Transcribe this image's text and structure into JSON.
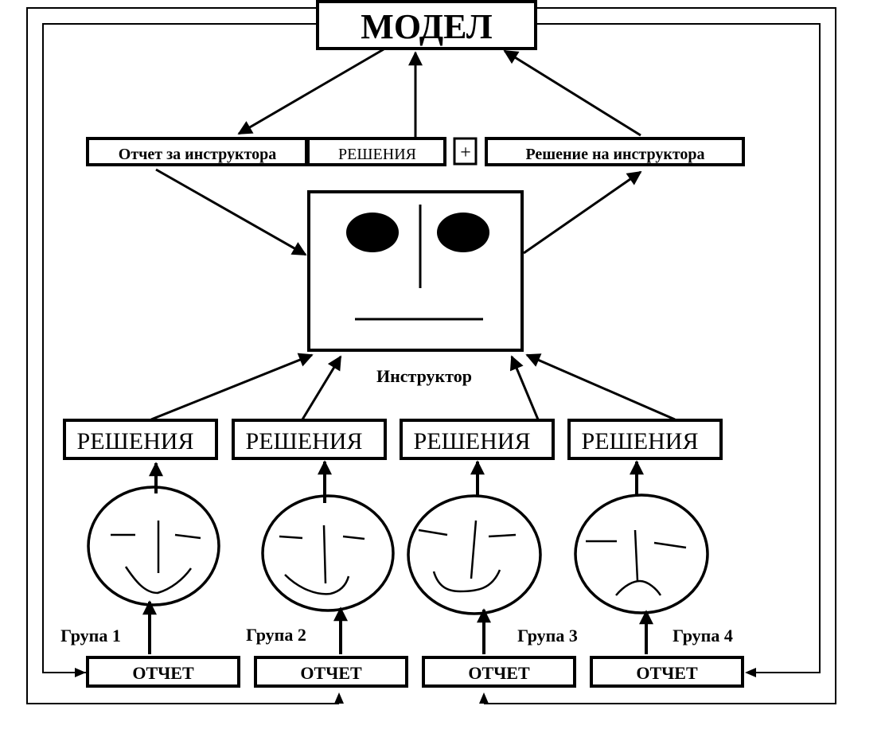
{
  "model": {
    "label": "МОДЕЛ"
  },
  "top_row": {
    "report_label": "Отчет за инструктора",
    "solutions_label": "РЕШЕНИЯ",
    "plus_label": "+",
    "decision_label": "Решение на инструктора"
  },
  "instructor": {
    "label": "Инструктор"
  },
  "groups": [
    {
      "solutions": "РЕШЕНИЯ",
      "name": "Група 1",
      "report": "ОТЧЕТ",
      "mood": "happy"
    },
    {
      "solutions": "РЕШЕНИЯ",
      "name": "Група 2",
      "report": "ОТЧЕТ",
      "mood": "happy"
    },
    {
      "solutions": "РЕШЕНИЯ",
      "name": "Група 3",
      "report": "ОТЧЕТ",
      "mood": "happy"
    },
    {
      "solutions": "РЕШЕНИЯ",
      "name": "Група 4",
      "report": "ОТЧЕТ",
      "mood": "sad"
    }
  ],
  "colors": {
    "stroke": "#000000",
    "background": "#ffffff"
  }
}
